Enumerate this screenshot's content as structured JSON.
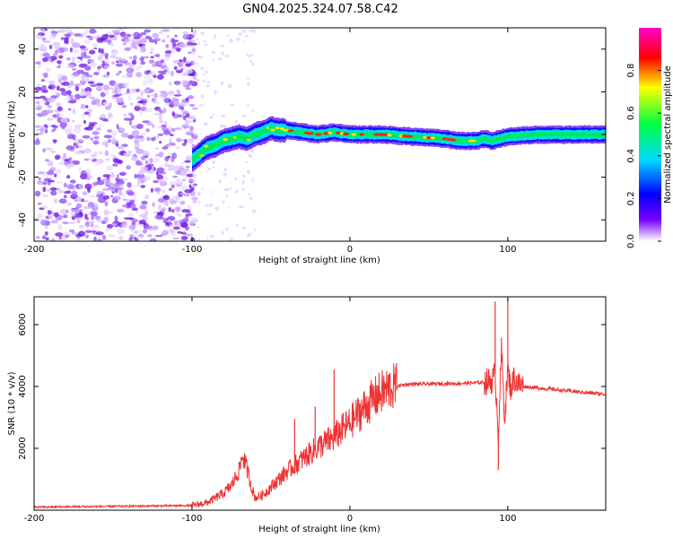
{
  "figure_title": "GN04.2025.324.07.58.C42",
  "chart_data": [
    {
      "type": "heatmap",
      "title": "GN04.2025.324.07.58.C42",
      "xlabel": "Height of straight line (km)",
      "ylabel": "Frequency (Hz)",
      "xlim": [
        -200,
        162
      ],
      "ylim": [
        -50,
        50
      ],
      "x_ticks": [
        -200,
        -100,
        0,
        100
      ],
      "y_ticks": [
        -40,
        -20,
        0,
        20,
        40
      ],
      "x_tick_labels": [
        "-200",
        "-100",
        "0",
        "100"
      ],
      "y_tick_labels": [
        "-40",
        "-20",
        "0",
        "20",
        "40"
      ],
      "colorbar": {
        "label": "Normalized spectral amplitude",
        "range": [
          0,
          1
        ],
        "ticks": [
          0.0,
          0.2,
          0.4,
          0.6,
          0.8
        ],
        "tick_labels": [
          "0.0",
          "0.2",
          "0.4",
          "0.6",
          "0.8"
        ],
        "colormap": [
          "#ffffff",
          "#7a00ff",
          "#0000ff",
          "#00d8ff",
          "#00ff40",
          "#ffff00",
          "#ff0000",
          "#ff00cc"
        ]
      },
      "ridge": {
        "x": [
          -100,
          -95,
          -90,
          -85,
          -80,
          -75,
          -70,
          -65,
          -60,
          -55,
          -50,
          -45,
          -40,
          -30,
          -20,
          -10,
          0,
          20,
          40,
          60,
          70,
          80,
          85,
          90,
          100,
          120,
          140,
          162
        ],
        "y": [
          -12,
          -9,
          -6,
          -5,
          -3,
          -2,
          -1,
          -2,
          0,
          1,
          3,
          2,
          2,
          1,
          0,
          1,
          0,
          0,
          -1,
          -2,
          -3,
          -3,
          -2,
          -3,
          -1,
          0,
          0,
          0
        ],
        "noise_region_x": [
          -200,
          -100
        ],
        "peak_amplitude_x": [
          -40,
          80
        ]
      }
    },
    {
      "type": "line",
      "title": "",
      "xlabel": "Height of straight line (km)",
      "ylabel": "SNR (10 * v/v)",
      "xlim": [
        -200,
        162
      ],
      "ylim": [
        0,
        6900
      ],
      "x_ticks": [
        -200,
        -100,
        0,
        100
      ],
      "y_ticks": [
        2000,
        4000,
        6000
      ],
      "x_tick_labels": [
        "-200",
        "-100",
        "0",
        "100"
      ],
      "y_tick_labels": [
        "2000",
        "4000",
        "6000"
      ],
      "color": "#ee3333",
      "series": [
        {
          "name": "SNR",
          "x": [
            -200,
            -180,
            -160,
            -140,
            -120,
            -100,
            -90,
            -80,
            -75,
            -70,
            -68,
            -65,
            -62,
            -60,
            -55,
            -50,
            -45,
            -40,
            -35,
            -30,
            -25,
            -20,
            -15,
            -10,
            -5,
            0,
            5,
            10,
            15,
            20,
            25,
            30,
            35,
            40,
            50,
            60,
            70,
            80,
            85,
            90,
            92,
            94,
            96,
            98,
            100,
            102,
            104,
            106,
            110,
            120,
            130,
            140,
            150,
            162
          ],
          "y": [
            100,
            110,
            120,
            130,
            140,
            150,
            250,
            550,
            800,
            1300,
            1800,
            1300,
            700,
            400,
            500,
            750,
            1000,
            1250,
            1450,
            1650,
            1850,
            2050,
            2200,
            2350,
            2600,
            2800,
            3100,
            3350,
            3600,
            3800,
            3950,
            4020,
            4060,
            4080,
            4080,
            4090,
            4100,
            4120,
            4140,
            4200,
            4400,
            2500,
            5200,
            3000,
            4500,
            3900,
            4300,
            4100,
            4000,
            3950,
            3900,
            3850,
            3800,
            3750
          ],
          "spikes": [
            {
              "x": -35,
              "y": 2950
            },
            {
              "x": -22,
              "y": 3350
            },
            {
              "x": -10,
              "y": 4550
            },
            {
              "x": 92,
              "y": 6750
            },
            {
              "x": 94,
              "y": 1300
            },
            {
              "x": 100,
              "y": 6850
            }
          ]
        }
      ]
    }
  ]
}
